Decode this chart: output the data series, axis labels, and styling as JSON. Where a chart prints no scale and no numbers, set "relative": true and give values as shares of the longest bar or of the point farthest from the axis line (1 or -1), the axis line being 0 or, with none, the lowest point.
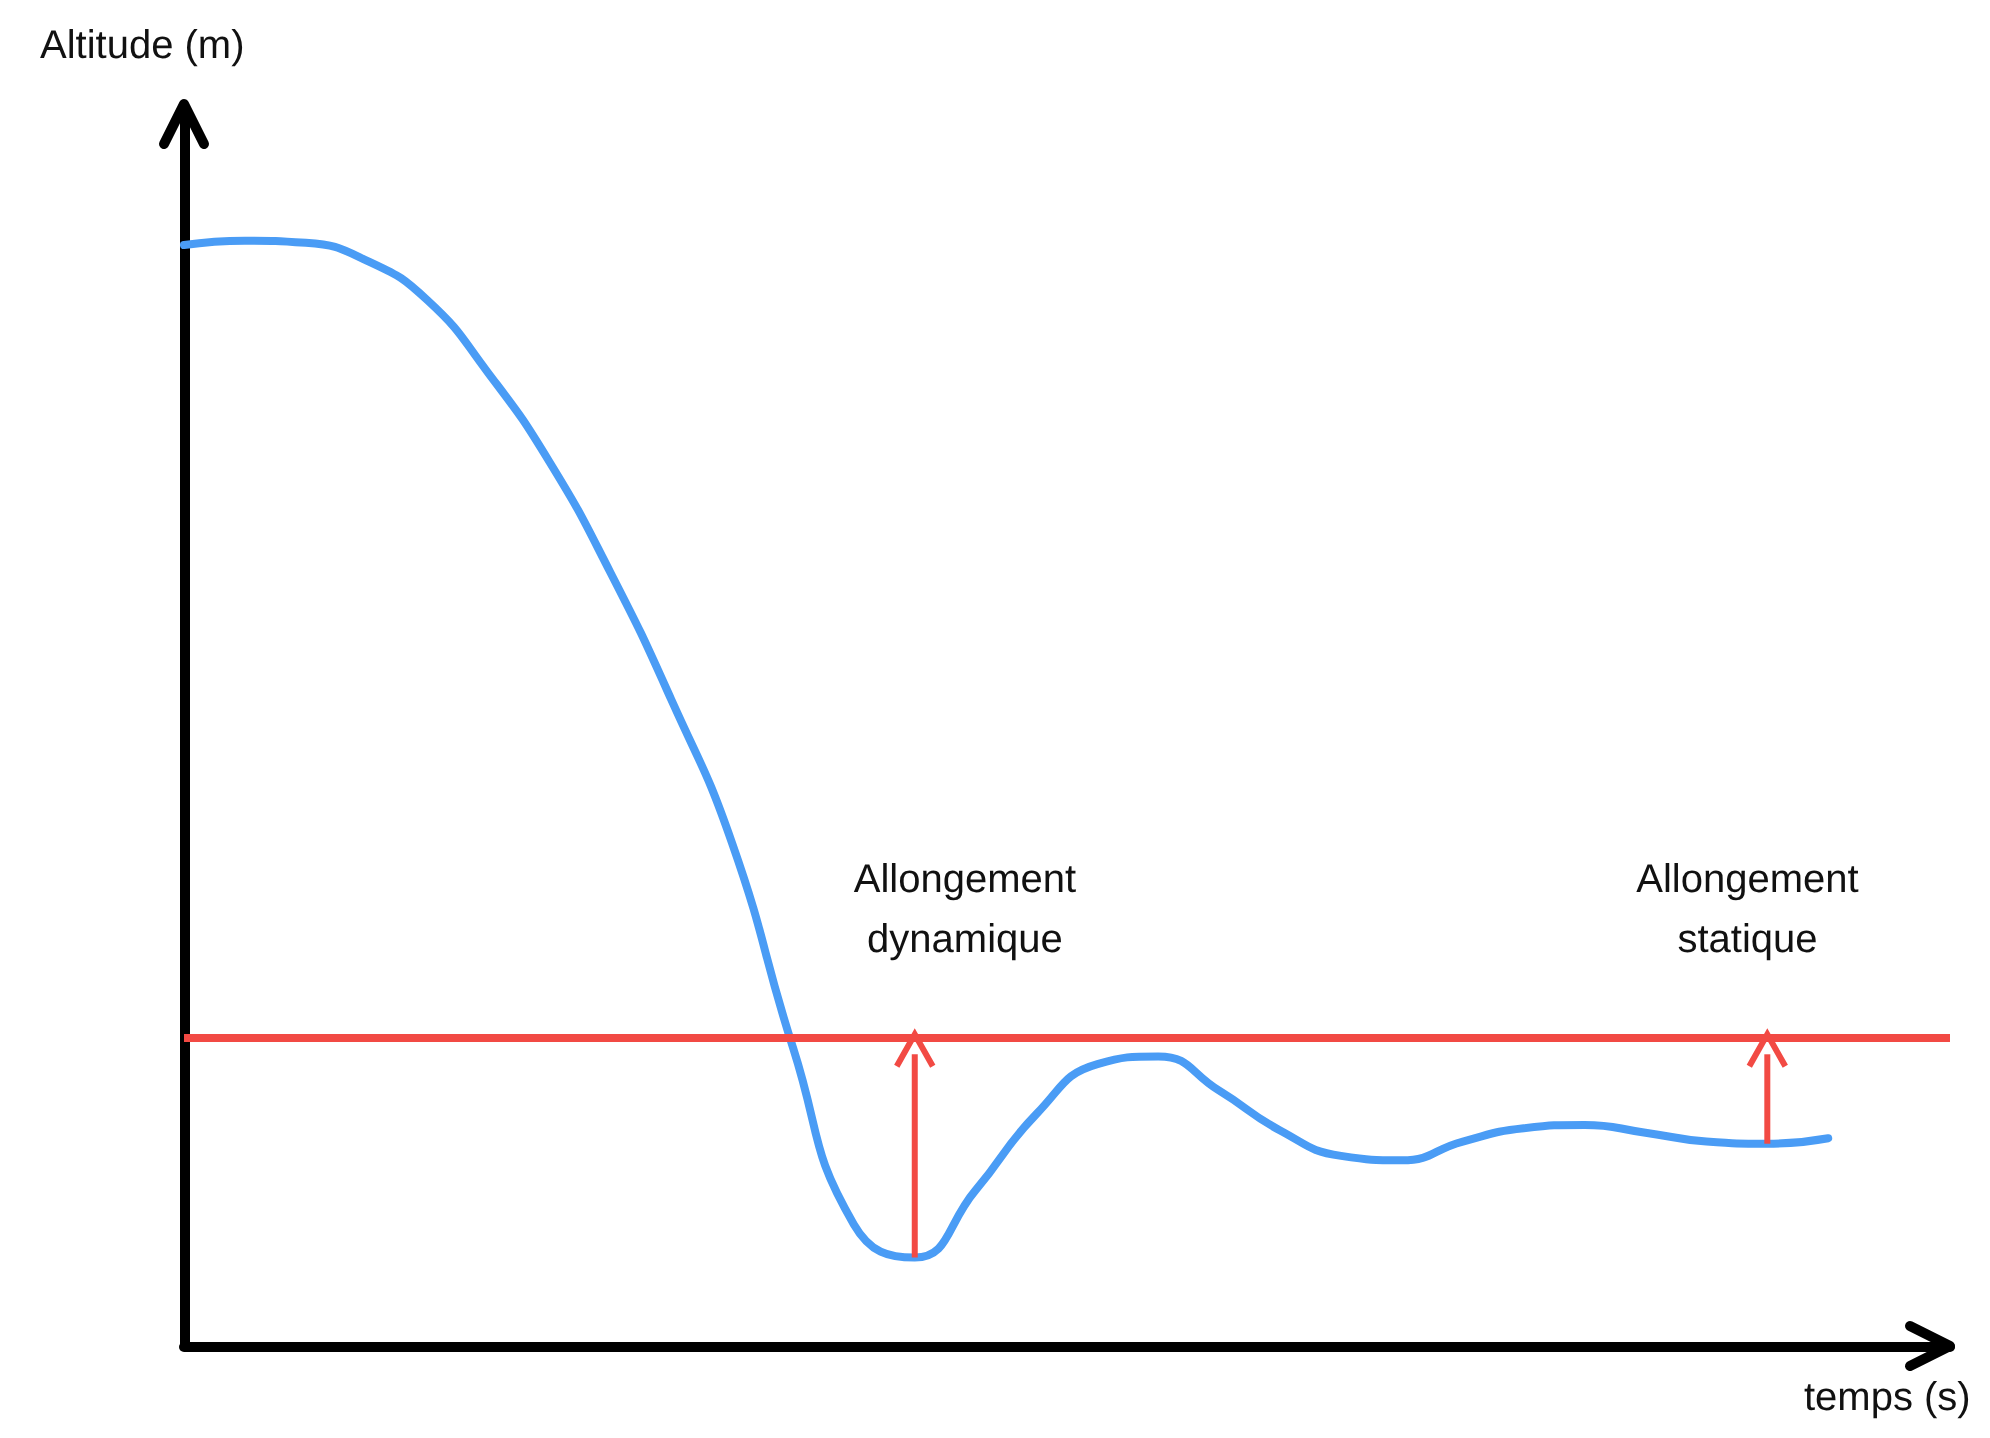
{
  "chart_data": {
    "type": "line",
    "relative": true,
    "xlabel": "temps (s)",
    "ylabel": "Altitude (m)",
    "categories": [
      null,
      null,
      null,
      null,
      null,
      null,
      null,
      null,
      null,
      null,
      null,
      null,
      null,
      null,
      null,
      null,
      null,
      null,
      null,
      null,
      null,
      null,
      null,
      null,
      null,
      null,
      null,
      null,
      null,
      null
    ],
    "series": [
      {
        "color": "#4a9cf5",
        "values": [
          0.996,
          1,
          0.998,
          0.982,
          0.946,
          0.88,
          0.8,
          0.7,
          0.585,
          0.455,
          0.27,
          0.11,
          0.08,
          0.141,
          0.21,
          0.255,
          0.262,
          0.231,
          0.195,
          0.172,
          0.168,
          0.185,
          0.197,
          0.2,
          0.193,
          0.185,
          0.183,
          0.188,
          null,
          null
        ]
      }
    ],
    "ref_lines": [
      {
        "axis": "y",
        "value": 0.282,
        "color": "#f24a44"
      }
    ],
    "annotations": [
      "Allongement\ndynamique",
      "Allongement\nstatique"
    ],
    "grid": false
  }
}
